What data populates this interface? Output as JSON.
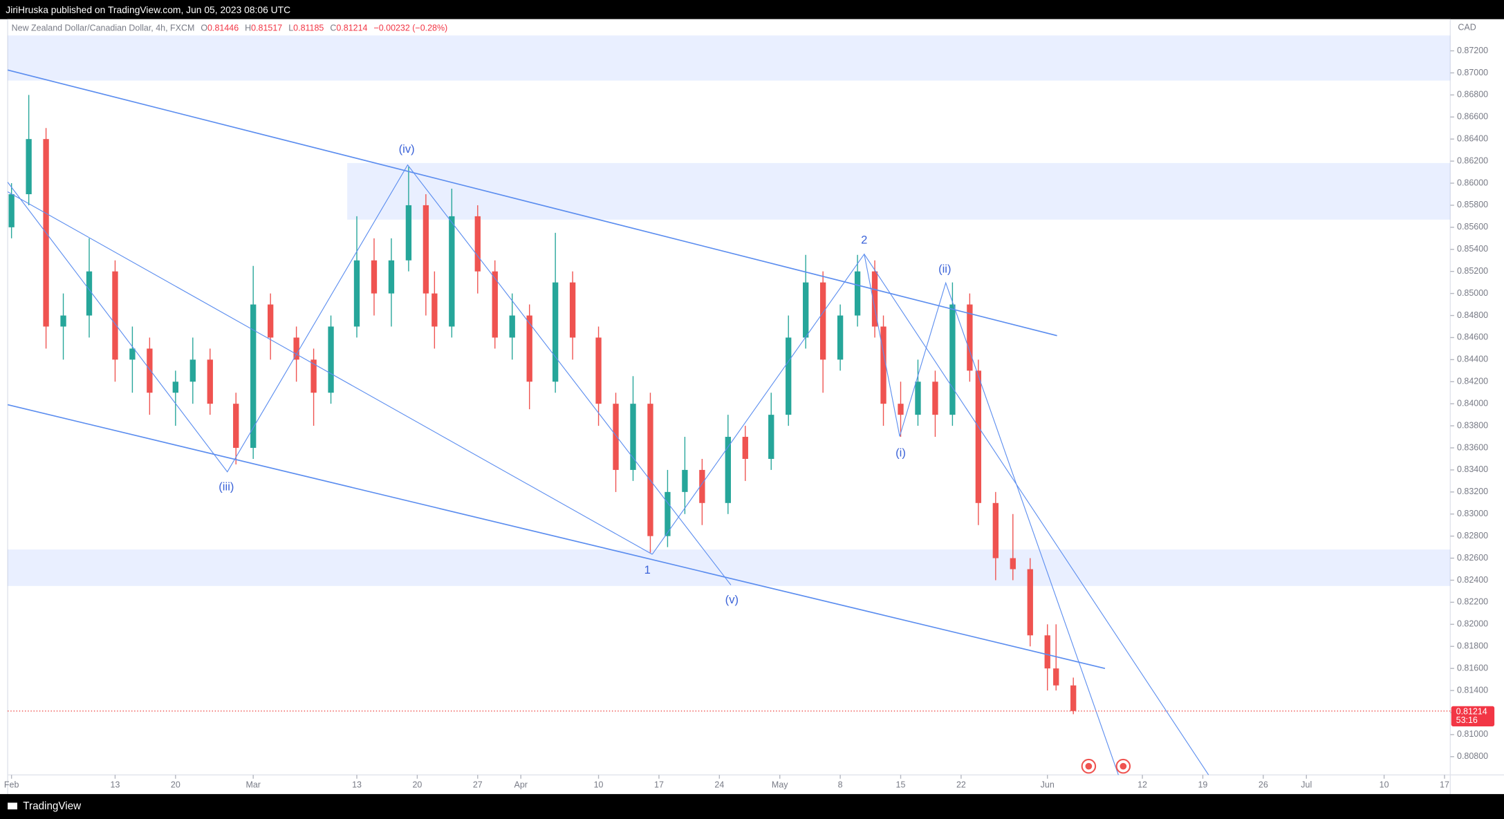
{
  "header": {
    "publisher": "JiriHruska published on TradingView.com, Jun 05, 2023 08:06 UTC",
    "symbol": "New Zealand Dollar/Canadian Dollar, 4h, FXCM",
    "open_key": "O",
    "high_key": "H",
    "low_key": "L",
    "close_key": "C",
    "change": "−0.00232 (−0.28%)"
  },
  "footer": {
    "brand": "TradingView"
  },
  "chart_data": {
    "type": "candlestick",
    "currency": "CAD",
    "up_color": "#26a69a",
    "down_color": "#ef5350",
    "grid": false,
    "countdown": "53:16",
    "wave_labels": [
      "(iv)",
      "2",
      "(ii)",
      "(iii)",
      "1",
      "(v)",
      "(i)"
    ],
    "x": [
      "Feb 1",
      "Feb 3",
      "Feb 5",
      "Feb 7",
      "Feb 10",
      "Feb 13",
      "Feb 15",
      "Feb 17",
      "Feb 20",
      "Feb 22",
      "Feb 24",
      "Feb 27",
      "Mar 1",
      "Mar 3",
      "Mar 6",
      "Mar 8",
      "Mar 10",
      "Mar 13",
      "Mar 15",
      "Mar 17",
      "Mar 19",
      "Mar 21",
      "Mar 22",
      "Mar 24",
      "Mar 27",
      "Mar 29",
      "Mar 31",
      "Apr 2",
      "Apr 5",
      "Apr 7",
      "Apr 10",
      "Apr 12",
      "Apr 14",
      "Apr 16",
      "Apr 18",
      "Apr 20",
      "Apr 22",
      "Apr 25",
      "Apr 27",
      "Apr 30",
      "May 2",
      "May 4",
      "May 6",
      "May 8",
      "May 10",
      "May 12",
      "May 13",
      "May 15",
      "May 17",
      "May 19",
      "May 21",
      "May 23",
      "May 24",
      "May 26",
      "May 28",
      "May 30",
      "Jun 1",
      "Jun 2",
      "Jun 4"
    ],
    "open": [
      0.856,
      0.859,
      0.864,
      0.847,
      0.848,
      0.852,
      0.844,
      0.845,
      0.841,
      0.842,
      0.844,
      0.84,
      0.836,
      0.849,
      0.846,
      0.844,
      0.841,
      0.847,
      0.853,
      0.85,
      0.853,
      0.858,
      0.85,
      0.847,
      0.857,
      0.852,
      0.846,
      0.848,
      0.842,
      0.851,
      0.846,
      0.84,
      0.834,
      0.84,
      0.828,
      0.832,
      0.834,
      0.831,
      0.837,
      0.835,
      0.839,
      0.846,
      0.851,
      0.844,
      0.848,
      0.852,
      0.847,
      0.84,
      0.839,
      0.842,
      0.839,
      0.849,
      0.843,
      0.831,
      0.826,
      0.825,
      0.819,
      0.816,
      0.81446
    ],
    "high": [
      0.86,
      0.868,
      0.865,
      0.85,
      0.855,
      0.853,
      0.847,
      0.846,
      0.843,
      0.846,
      0.845,
      0.841,
      0.8525,
      0.85,
      0.847,
      0.845,
      0.848,
      0.857,
      0.855,
      0.855,
      0.8615,
      0.859,
      0.852,
      0.8595,
      0.858,
      0.853,
      0.85,
      0.849,
      0.8555,
      0.852,
      0.847,
      0.841,
      0.8425,
      0.841,
      0.834,
      0.837,
      0.835,
      0.839,
      0.838,
      0.841,
      0.848,
      0.8535,
      0.852,
      0.849,
      0.8535,
      0.853,
      0.848,
      0.842,
      0.844,
      0.843,
      0.851,
      0.85,
      0.844,
      0.832,
      0.83,
      0.826,
      0.82,
      0.82,
      0.81517
    ],
    "low": [
      0.855,
      0.858,
      0.845,
      0.844,
      0.846,
      0.842,
      0.841,
      0.839,
      0.838,
      0.84,
      0.839,
      0.8345,
      0.835,
      0.844,
      0.842,
      0.838,
      0.84,
      0.846,
      0.848,
      0.847,
      0.852,
      0.848,
      0.845,
      0.846,
      0.85,
      0.845,
      0.844,
      0.8395,
      0.841,
      0.844,
      0.838,
      0.832,
      0.833,
      0.8265,
      0.827,
      0.83,
      0.829,
      0.83,
      0.833,
      0.834,
      0.838,
      0.845,
      0.841,
      0.843,
      0.847,
      0.846,
      0.838,
      0.837,
      0.838,
      0.837,
      0.838,
      0.842,
      0.829,
      0.824,
      0.824,
      0.818,
      0.814,
      0.814,
      0.81185
    ],
    "close": [
      0.859,
      0.864,
      0.847,
      0.848,
      0.852,
      0.844,
      0.845,
      0.841,
      0.842,
      0.844,
      0.84,
      0.836,
      0.849,
      0.846,
      0.844,
      0.841,
      0.847,
      0.853,
      0.85,
      0.853,
      0.858,
      0.85,
      0.847,
      0.857,
      0.852,
      0.846,
      0.848,
      0.842,
      0.851,
      0.846,
      0.84,
      0.834,
      0.84,
      0.828,
      0.832,
      0.834,
      0.831,
      0.837,
      0.835,
      0.839,
      0.846,
      0.851,
      0.844,
      0.848,
      0.852,
      0.847,
      0.84,
      0.839,
      0.842,
      0.839,
      0.849,
      0.843,
      0.831,
      0.826,
      0.825,
      0.819,
      0.816,
      0.81446,
      0.81214
    ],
    "ylim": [
      0.808,
      0.872
    ],
    "yticks": [
      {
        "value": 0.808,
        "label": "0.80800"
      },
      {
        "value": 0.81,
        "label": "0.81000"
      },
      {
        "value": 0.812,
        "label": "0.81200"
      },
      {
        "value": 0.814,
        "label": "0.81400"
      },
      {
        "value": 0.816,
        "label": "0.81600"
      },
      {
        "value": 0.818,
        "label": "0.81800"
      },
      {
        "value": 0.82,
        "label": "0.82000"
      },
      {
        "value": 0.822,
        "label": "0.82200"
      },
      {
        "value": 0.824,
        "label": "0.82400"
      },
      {
        "value": 0.826,
        "label": "0.82600"
      },
      {
        "value": 0.828,
        "label": "0.82800"
      },
      {
        "value": 0.83,
        "label": "0.83000"
      },
      {
        "value": 0.832,
        "label": "0.83200"
      },
      {
        "value": 0.834,
        "label": "0.83400"
      },
      {
        "value": 0.836,
        "label": "0.83600"
      },
      {
        "value": 0.838,
        "label": "0.83800"
      },
      {
        "value": 0.84,
        "label": "0.84000"
      },
      {
        "value": 0.842,
        "label": "0.84200"
      },
      {
        "value": 0.844,
        "label": "0.84400"
      },
      {
        "value": 0.846,
        "label": "0.84600"
      },
      {
        "value": 0.848,
        "label": "0.84800"
      },
      {
        "value": 0.85,
        "label": "0.85000"
      },
      {
        "value": 0.852,
        "label": "0.85200"
      },
      {
        "value": 0.854,
        "label": "0.85400"
      },
      {
        "value": 0.856,
        "label": "0.85600"
      },
      {
        "value": 0.858,
        "label": "0.85800"
      },
      {
        "value": 0.86,
        "label": "0.86000"
      },
      {
        "value": 0.862,
        "label": "0.86200"
      },
      {
        "value": 0.864,
        "label": "0.86400"
      },
      {
        "value": 0.866,
        "label": "0.86600"
      },
      {
        "value": 0.868,
        "label": "0.86800"
      },
      {
        "value": 0.87,
        "label": "0.87000"
      },
      {
        "value": 0.872,
        "label": "0.87200"
      }
    ],
    "xticks": [
      {
        "value": "Feb 1",
        "label": "Feb"
      },
      {
        "value": "Feb 13",
        "label": "13"
      },
      {
        "value": "Feb 20",
        "label": "20"
      },
      {
        "value": "Mar 1",
        "label": "Mar"
      },
      {
        "value": "Mar 13",
        "label": "13"
      },
      {
        "value": "Mar 20",
        "label": "20"
      },
      {
        "value": "Mar 27",
        "label": "27"
      },
      {
        "value": "Apr 1",
        "label": "Apr"
      },
      {
        "value": "Apr 10",
        "label": "10"
      },
      {
        "value": "Apr 17",
        "label": "17"
      },
      {
        "value": "Apr 24",
        "label": "24"
      },
      {
        "value": "May 1",
        "label": "May"
      },
      {
        "value": "May 8",
        "label": "8"
      },
      {
        "value": "May 15",
        "label": "15"
      },
      {
        "value": "May 22",
        "label": "22"
      },
      {
        "value": "Jun 1",
        "label": "Jun"
      },
      {
        "value": "Jun 12",
        "label": "12"
      },
      {
        "value": "Jun 19",
        "label": "19"
      },
      {
        "value": "Jun 26",
        "label": "26"
      },
      {
        "value": "Jul 1",
        "label": "Jul"
      },
      {
        "value": "Jul 10",
        "label": "10"
      },
      {
        "value": "Jul 17",
        "label": "17"
      }
    ]
  }
}
